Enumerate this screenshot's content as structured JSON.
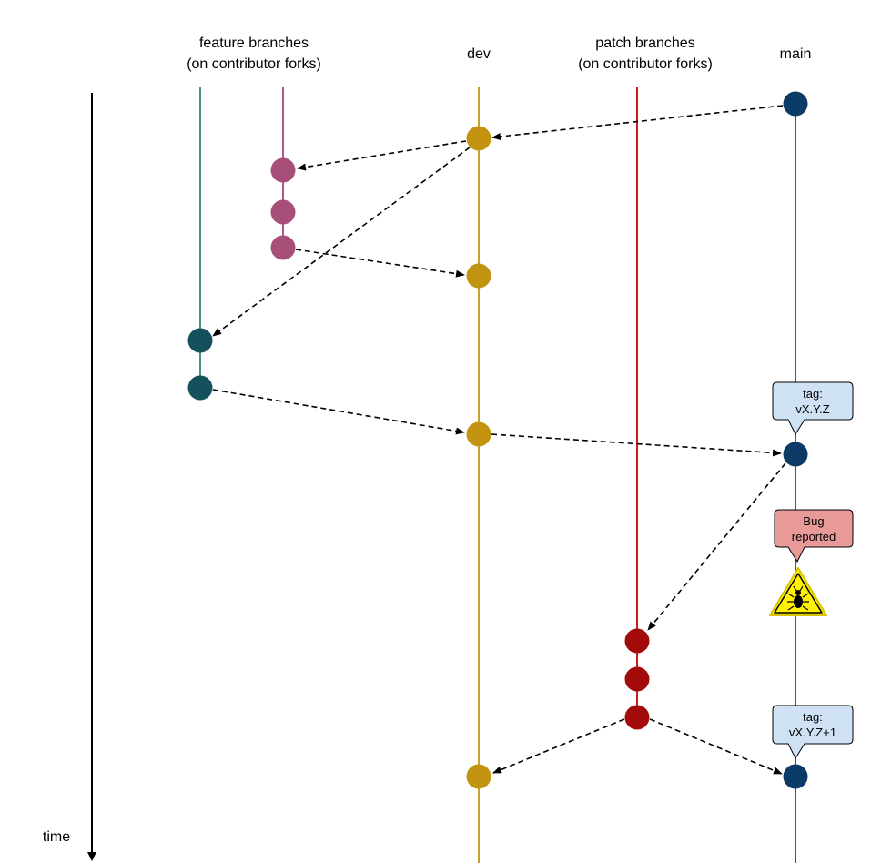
{
  "headers": {
    "feature": [
      "feature branches",
      "(on contributor forks)"
    ],
    "dev": "dev",
    "patch": [
      "patch branches",
      "(on contributor forks)"
    ],
    "main": "main"
  },
  "time_label": "time",
  "callouts": {
    "tag_release": [
      "tag:",
      "vX.Y.Z"
    ],
    "bug": [
      "Bug",
      "reported"
    ],
    "tag_patch": [
      "tag:",
      "vX.Y.Z+1"
    ]
  },
  "colors": {
    "feature_a_line": "#4a9089",
    "feature_b_line": "#b0568a",
    "feature_a_commit": "#16505c",
    "feature_b_commit": "#a74f79",
    "dev_line": "#c9a22e",
    "dev_commit": "#c29411",
    "patch_line": "#cc2020",
    "patch_commit": "#a30b0b",
    "main_line": "#2e6070",
    "main_commit": "#0b3a66",
    "tag_fill": "#cfe2f3",
    "bug_fill": "#ea9999",
    "warning_fill": "#fff200"
  },
  "icons": {
    "time_arrow": "down-arrow-icon",
    "bug_warning": "bug-warning-icon"
  }
}
